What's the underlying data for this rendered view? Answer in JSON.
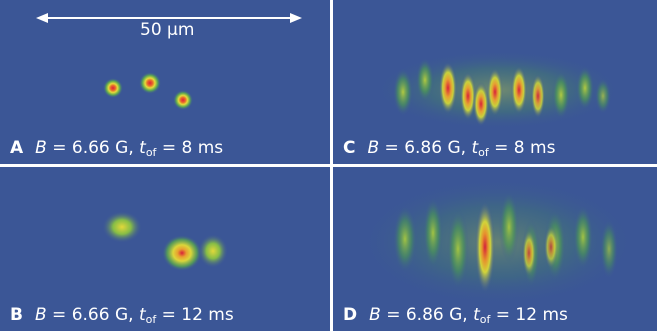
{
  "scale_bar": {
    "label": "50 μm"
  },
  "panels": {
    "a": {
      "letter": "A",
      "b_symbol": "B",
      "b_text": " = 6.66 G, ",
      "t_symbol": "t",
      "t_sub": "of",
      "t_text": " = 8 ms"
    },
    "b": {
      "letter": "B",
      "b_symbol": "B",
      "b_text": " = 6.66 G, ",
      "t_symbol": "t",
      "t_sub": "of",
      "t_text": " = 12 ms"
    },
    "c": {
      "letter": "C",
      "b_symbol": "B",
      "b_text": " = 6.86 G, ",
      "t_symbol": "t",
      "t_sub": "of",
      "t_text": " = 8 ms"
    },
    "d": {
      "letter": "D",
      "b_symbol": "B",
      "b_text": " = 6.86 G, ",
      "t_symbol": "t",
      "t_sub": "of",
      "t_text": " = 12 ms"
    }
  },
  "colors": {
    "background": "#3b5696",
    "low": "#3f9a52",
    "mid": "#d8d23a",
    "high": "#d4233a"
  }
}
